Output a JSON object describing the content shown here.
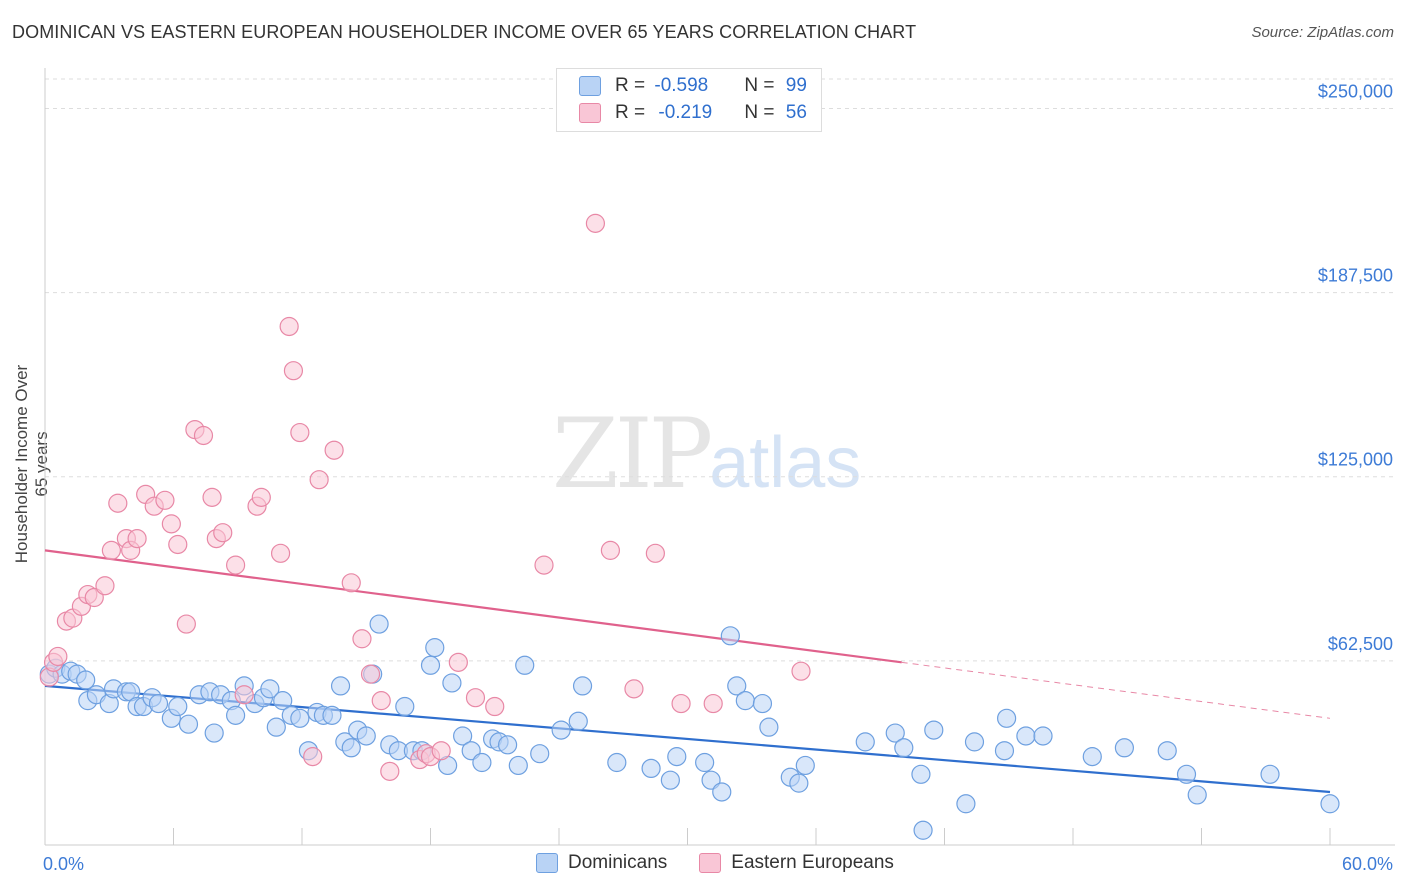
{
  "title": "DOMINICAN VS EASTERN EUROPEAN HOUSEHOLDER INCOME OVER 65 YEARS CORRELATION CHART",
  "source": "Source: ZipAtlas.com",
  "watermark": {
    "zip": "ZIP",
    "atlas": "atlas"
  },
  "legend": {
    "rows": [
      {
        "r_label": "R = ",
        "r_value": "-0.598",
        "n_label": "N = ",
        "n_value": "99",
        "fill": "#b9d3f5",
        "stroke": "#6ea0e0"
      },
      {
        "r_label": "R = ",
        "r_value": "-0.219",
        "n_label": "N = ",
        "n_value": "56",
        "fill": "#f9c6d6",
        "stroke": "#e888a6"
      }
    ]
  },
  "bottom_legend": [
    {
      "label": "Dominicans",
      "fill": "#b9d3f5",
      "stroke": "#6ea0e0"
    },
    {
      "label": "Eastern Europeans",
      "fill": "#f9c6d6",
      "stroke": "#e888a6"
    }
  ],
  "chart_data": {
    "type": "scatter",
    "title": "DOMINICAN VS EASTERN EUROPEAN HOUSEHOLDER INCOME OVER 65 YEARS CORRELATION CHART",
    "xlabel": "",
    "ylabel": "Householder Income Over 65 years",
    "xlim": [
      0,
      60
    ],
    "ylim": [
      0,
      260000
    ],
    "x_tick_labels": [
      "0.0%",
      "60.0%"
    ],
    "y_ticks": [
      62500,
      125000,
      187500,
      250000
    ],
    "y_tick_labels": [
      "$62,500",
      "$125,000",
      "$187,500",
      "$250,000"
    ],
    "grid": "horizontal dashed",
    "legend_position": "top-center",
    "series": [
      {
        "name": "Dominicans",
        "color": "#6ea0e0",
        "fill": "#b9d3f5",
        "trend": {
          "x": [
            0,
            60
          ],
          "y": [
            54000,
            18000
          ],
          "style": "solid"
        },
        "points": [
          [
            0.2,
            58000
          ],
          [
            0.5,
            60000
          ],
          [
            0.8,
            58000
          ],
          [
            1.2,
            59000
          ],
          [
            1.5,
            58000
          ],
          [
            1.9,
            56000
          ],
          [
            2.0,
            49000
          ],
          [
            2.4,
            51000
          ],
          [
            3.0,
            48000
          ],
          [
            3.2,
            53000
          ],
          [
            3.8,
            52000
          ],
          [
            4.0,
            52000
          ],
          [
            4.3,
            47000
          ],
          [
            4.6,
            47000
          ],
          [
            5.0,
            50000
          ],
          [
            5.3,
            48000
          ],
          [
            5.9,
            43000
          ],
          [
            6.2,
            47000
          ],
          [
            6.7,
            41000
          ],
          [
            7.2,
            51000
          ],
          [
            7.7,
            52000
          ],
          [
            7.9,
            38000
          ],
          [
            8.2,
            51000
          ],
          [
            8.7,
            49000
          ],
          [
            8.9,
            44000
          ],
          [
            9.3,
            54000
          ],
          [
            9.8,
            48000
          ],
          [
            10.2,
            50000
          ],
          [
            10.5,
            53000
          ],
          [
            10.8,
            40000
          ],
          [
            11.1,
            49000
          ],
          [
            11.5,
            44000
          ],
          [
            11.9,
            43000
          ],
          [
            12.3,
            32000
          ],
          [
            12.7,
            45000
          ],
          [
            13.0,
            44000
          ],
          [
            13.4,
            44000
          ],
          [
            13.8,
            54000
          ],
          [
            14.0,
            35000
          ],
          [
            14.3,
            33000
          ],
          [
            14.6,
            39000
          ],
          [
            15.0,
            37000
          ],
          [
            15.3,
            58000
          ],
          [
            15.6,
            75000
          ],
          [
            16.1,
            34000
          ],
          [
            16.5,
            32000
          ],
          [
            16.8,
            47000
          ],
          [
            17.2,
            32000
          ],
          [
            17.6,
            32000
          ],
          [
            18.0,
            61000
          ],
          [
            18.2,
            67000
          ],
          [
            18.8,
            27000
          ],
          [
            19.0,
            55000
          ],
          [
            19.5,
            37000
          ],
          [
            19.9,
            32000
          ],
          [
            20.4,
            28000
          ],
          [
            20.9,
            36000
          ],
          [
            21.2,
            35000
          ],
          [
            21.6,
            34000
          ],
          [
            22.1,
            27000
          ],
          [
            22.4,
            61000
          ],
          [
            23.1,
            31000
          ],
          [
            24.1,
            39000
          ],
          [
            24.9,
            42000
          ],
          [
            25.1,
            54000
          ],
          [
            26.7,
            28000
          ],
          [
            28.3,
            26000
          ],
          [
            29.2,
            22000
          ],
          [
            29.5,
            30000
          ],
          [
            30.8,
            28000
          ],
          [
            31.1,
            22000
          ],
          [
            31.6,
            18000
          ],
          [
            32.0,
            71000
          ],
          [
            32.3,
            54000
          ],
          [
            32.7,
            49000
          ],
          [
            33.5,
            48000
          ],
          [
            33.8,
            40000
          ],
          [
            34.8,
            23000
          ],
          [
            35.2,
            21000
          ],
          [
            35.5,
            27000
          ],
          [
            38.3,
            35000
          ],
          [
            39.7,
            38000
          ],
          [
            40.1,
            33000
          ],
          [
            40.9,
            24000
          ],
          [
            41.5,
            39000
          ],
          [
            43.4,
            35000
          ],
          [
            44.8,
            32000
          ],
          [
            44.9,
            43000
          ],
          [
            45.8,
            37000
          ],
          [
            46.6,
            37000
          ],
          [
            48.9,
            30000
          ],
          [
            50.4,
            33000
          ],
          [
            52.4,
            32000
          ],
          [
            53.3,
            24000
          ],
          [
            53.8,
            17000
          ],
          [
            57.2,
            24000
          ],
          [
            60.0,
            14000
          ],
          [
            43.0,
            14000
          ],
          [
            41.0,
            5000
          ]
        ]
      },
      {
        "name": "Eastern Europeans",
        "color": "#e888a6",
        "fill": "#f9c6d6",
        "trend": {
          "x": [
            0,
            40
          ],
          "y": [
            100000,
            62000
          ],
          "style": "solid",
          "dashed_extension_to": [
            60,
            43000
          ]
        },
        "points": [
          [
            0.2,
            57000
          ],
          [
            0.4,
            62000
          ],
          [
            0.6,
            64000
          ],
          [
            1.0,
            76000
          ],
          [
            1.3,
            77000
          ],
          [
            1.7,
            81000
          ],
          [
            2.0,
            85000
          ],
          [
            2.3,
            84000
          ],
          [
            2.8,
            88000
          ],
          [
            3.1,
            100000
          ],
          [
            3.4,
            116000
          ],
          [
            3.8,
            104000
          ],
          [
            4.0,
            100000
          ],
          [
            4.3,
            104000
          ],
          [
            4.7,
            119000
          ],
          [
            5.1,
            115000
          ],
          [
            5.6,
            117000
          ],
          [
            5.9,
            109000
          ],
          [
            6.2,
            102000
          ],
          [
            6.6,
            75000
          ],
          [
            7.0,
            141000
          ],
          [
            7.4,
            139000
          ],
          [
            7.8,
            118000
          ],
          [
            8.0,
            104000
          ],
          [
            8.3,
            106000
          ],
          [
            8.9,
            95000
          ],
          [
            9.3,
            51000
          ],
          [
            9.9,
            115000
          ],
          [
            10.1,
            118000
          ],
          [
            11.0,
            99000
          ],
          [
            11.4,
            176000
          ],
          [
            11.6,
            161000
          ],
          [
            11.9,
            140000
          ],
          [
            12.5,
            30000
          ],
          [
            12.8,
            124000
          ],
          [
            13.5,
            134000
          ],
          [
            14.3,
            89000
          ],
          [
            14.8,
            70000
          ],
          [
            15.2,
            58000
          ],
          [
            15.7,
            49000
          ],
          [
            16.1,
            25000
          ],
          [
            17.5,
            29000
          ],
          [
            17.8,
            31000
          ],
          [
            18.0,
            30000
          ],
          [
            18.5,
            32000
          ],
          [
            19.3,
            62000
          ],
          [
            20.1,
            50000
          ],
          [
            21.0,
            47000
          ],
          [
            23.3,
            95000
          ],
          [
            25.7,
            211000
          ],
          [
            26.4,
            100000
          ],
          [
            27.5,
            53000
          ],
          [
            28.5,
            99000
          ],
          [
            29.7,
            48000
          ],
          [
            31.2,
            48000
          ],
          [
            35.3,
            59000
          ]
        ]
      }
    ]
  }
}
